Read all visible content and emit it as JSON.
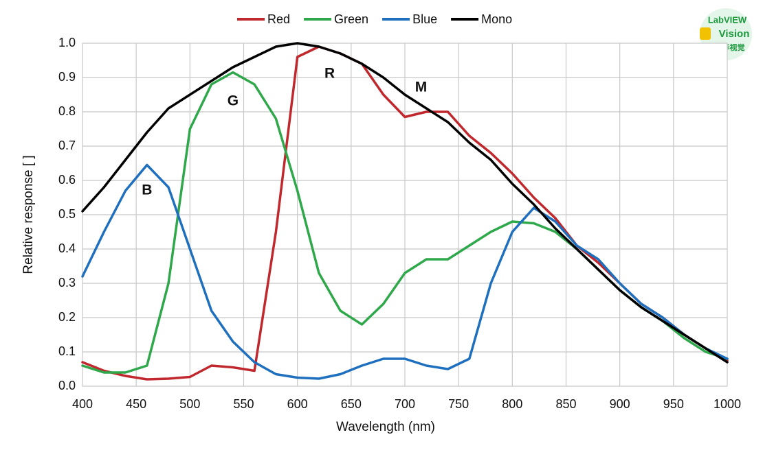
{
  "chart_data": {
    "type": "line",
    "xlabel": "Wavelength (nm)",
    "ylabel": "Relative response [ ]",
    "x": [
      400,
      420,
      440,
      460,
      480,
      500,
      520,
      540,
      560,
      580,
      600,
      620,
      640,
      660,
      680,
      700,
      720,
      740,
      760,
      780,
      800,
      820,
      840,
      860,
      880,
      900,
      920,
      940,
      960,
      980,
      1000
    ],
    "series": [
      {
        "name": "Red",
        "color": "#c0282d",
        "values": [
          0.07,
          0.045,
          0.03,
          0.02,
          0.022,
          0.027,
          0.06,
          0.055,
          0.045,
          0.45,
          0.96,
          0.99,
          0.97,
          0.94,
          0.85,
          0.785,
          0.8,
          0.8,
          0.73,
          0.68,
          0.62,
          0.55,
          0.49,
          0.41,
          0.36,
          0.3,
          0.24,
          0.2,
          0.15,
          0.11,
          0.075
        ]
      },
      {
        "name": "Green",
        "color": "#2ea84a",
        "values": [
          0.06,
          0.04,
          0.04,
          0.06,
          0.3,
          0.75,
          0.88,
          0.915,
          0.88,
          0.78,
          0.57,
          0.33,
          0.22,
          0.18,
          0.24,
          0.33,
          0.37,
          0.37,
          0.41,
          0.45,
          0.48,
          0.475,
          0.45,
          0.4,
          0.34,
          0.28,
          0.23,
          0.19,
          0.14,
          0.1,
          0.08
        ]
      },
      {
        "name": "Blue",
        "color": "#1f6fbf",
        "values": [
          0.32,
          0.45,
          0.57,
          0.645,
          0.58,
          0.4,
          0.22,
          0.13,
          0.07,
          0.035,
          0.025,
          0.022,
          0.035,
          0.06,
          0.08,
          0.08,
          0.06,
          0.05,
          0.08,
          0.3,
          0.45,
          0.52,
          0.48,
          0.41,
          0.37,
          0.3,
          0.24,
          0.2,
          0.15,
          0.11,
          0.08
        ]
      },
      {
        "name": "Mono",
        "color": "#000000",
        "values": [
          0.51,
          0.58,
          0.66,
          0.74,
          0.81,
          0.85,
          0.89,
          0.93,
          0.96,
          0.99,
          1.0,
          0.99,
          0.97,
          0.94,
          0.9,
          0.85,
          0.81,
          0.77,
          0.71,
          0.66,
          0.59,
          0.53,
          0.46,
          0.4,
          0.34,
          0.28,
          0.23,
          0.19,
          0.15,
          0.11,
          0.07
        ]
      }
    ],
    "annotations": [
      {
        "text": "B",
        "x": 460,
        "y": 0.57
      },
      {
        "text": "G",
        "x": 540,
        "y": 0.83
      },
      {
        "text": "R",
        "x": 630,
        "y": 0.91
      },
      {
        "text": "M",
        "x": 715,
        "y": 0.87
      }
    ],
    "xlim": [
      400,
      1000
    ],
    "xticks": [
      400,
      450,
      500,
      550,
      600,
      650,
      700,
      750,
      800,
      850,
      900,
      950,
      1000
    ],
    "ylim": [
      0,
      1
    ],
    "yticks": [
      {
        "value": 0,
        "label": "0.0"
      },
      0.1,
      0.2,
      0.3,
      0.4,
      0.5,
      0.6,
      0.7,
      0.8,
      0.9,
      {
        "value": 1,
        "label": "1.0"
      }
    ],
    "grid": true,
    "legend": "top"
  },
  "watermark": {
    "lines": [
      "LabVIEW",
      "Vision",
      "石鑫华视觉"
    ]
  }
}
